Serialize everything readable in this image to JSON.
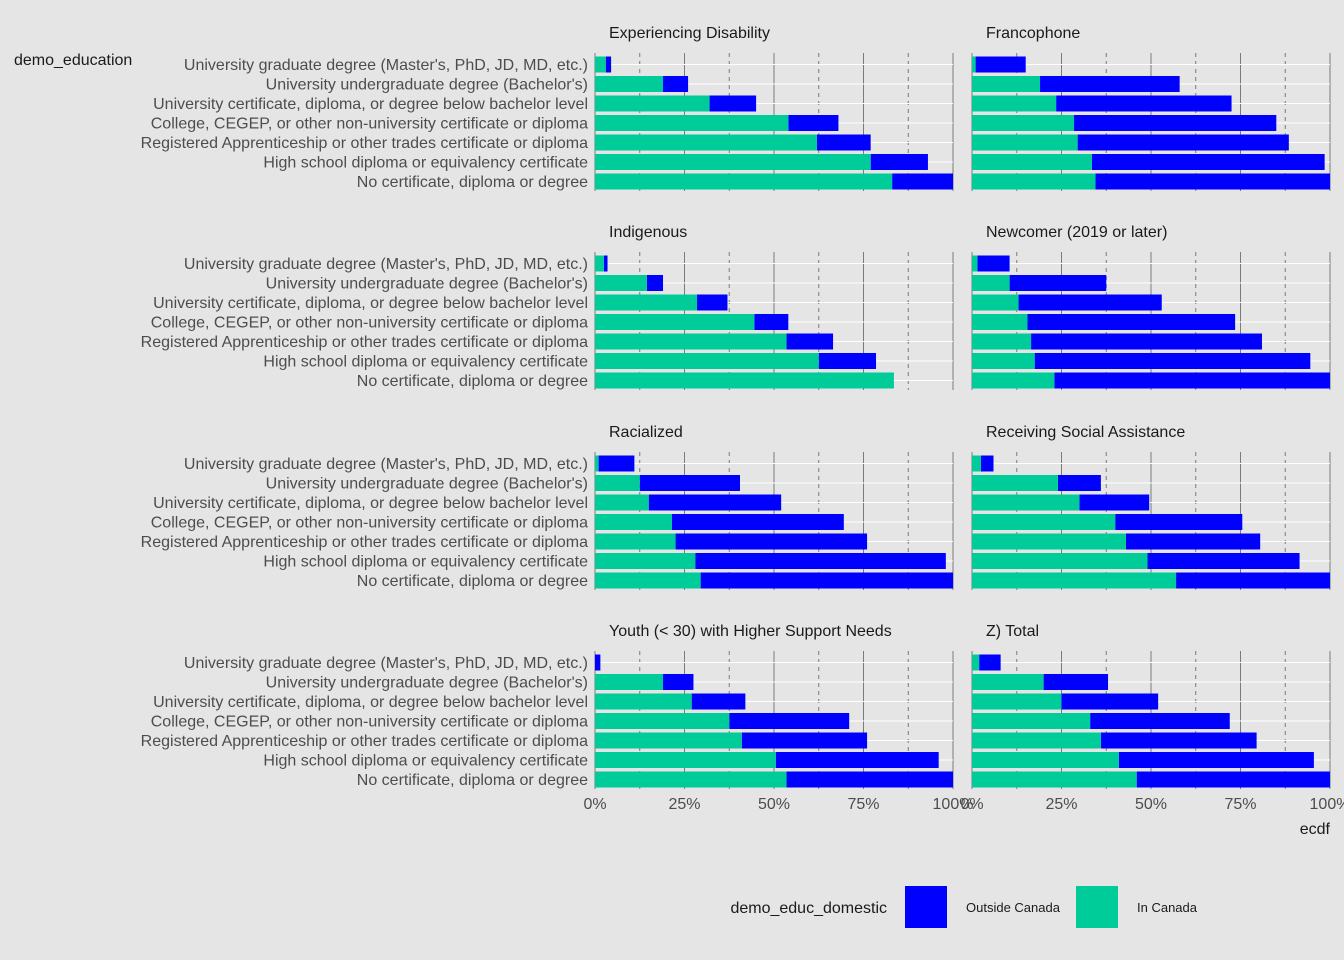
{
  "chart_data": {
    "type": "bar",
    "orientation": "horizontal",
    "stacked": true,
    "ylabel": "demo_education",
    "xlabel": "ecdf",
    "xlim": [
      0,
      1
    ],
    "x_ticks": [
      0,
      0.25,
      0.5,
      0.75,
      1
    ],
    "x_tick_labels": [
      "0%",
      "25%",
      "50%",
      "75%",
      "100%"
    ],
    "grid": true,
    "legend": {
      "title": "demo_educ_domestic",
      "position": "bottom",
      "items": [
        {
          "name": "Outside Canada",
          "color": "#0000ff"
        },
        {
          "name": "In Canada",
          "color": "#00cc99"
        }
      ]
    },
    "categories": [
      "University graduate degree (Master's, PhD, JD, MD, etc.)",
      "University undergraduate degree (Bachelor's)",
      "University certificate, diploma, or degree below bachelor level",
      "College, CEGEP, or other non-university certificate or diploma",
      "Registered Apprenticeship or other trades certificate or diploma",
      "High school diploma or equivalency certificate",
      "No certificate, diploma or degree"
    ],
    "facets": [
      {
        "title": "Experiencing Disability",
        "in_canada": [
          0.03,
          0.19,
          0.32,
          0.54,
          0.62,
          0.77,
          0.83
        ],
        "total": [
          0.045,
          0.26,
          0.45,
          0.68,
          0.77,
          0.93,
          1.0
        ]
      },
      {
        "title": "Francophone",
        "in_canada": [
          0.01,
          0.19,
          0.235,
          0.285,
          0.295,
          0.335,
          0.345
        ],
        "total": [
          0.15,
          0.58,
          0.725,
          0.85,
          0.885,
          0.985,
          1.0
        ]
      },
      {
        "title": "Indigenous",
        "in_canada": [
          0.025,
          0.145,
          0.285,
          0.445,
          0.535,
          0.625,
          0.835
        ],
        "total": [
          0.035,
          0.19,
          0.37,
          0.54,
          0.665,
          0.785,
          0.835
        ]
      },
      {
        "title": "Newcomer (2019 or later)",
        "in_canada": [
          0.015,
          0.105,
          0.13,
          0.155,
          0.165,
          0.175,
          0.23
        ],
        "total": [
          0.105,
          0.375,
          0.53,
          0.735,
          0.81,
          0.945,
          1.0
        ]
      },
      {
        "title": "Racialized",
        "in_canada": [
          0.01,
          0.125,
          0.15,
          0.215,
          0.225,
          0.28,
          0.295
        ],
        "total": [
          0.11,
          0.405,
          0.52,
          0.695,
          0.76,
          0.98,
          1.0
        ]
      },
      {
        "title": "Receiving Social Assistance",
        "in_canada": [
          0.025,
          0.24,
          0.3,
          0.4,
          0.43,
          0.49,
          0.57
        ],
        "total": [
          0.06,
          0.36,
          0.495,
          0.755,
          0.805,
          0.915,
          1.0
        ]
      },
      {
        "title": "Youth (< 30) with Higher Support Needs",
        "in_canada": [
          0.0,
          0.19,
          0.27,
          0.375,
          0.41,
          0.505,
          0.535
        ],
        "total": [
          0.015,
          0.275,
          0.42,
          0.71,
          0.76,
          0.96,
          1.0
        ]
      },
      {
        "title": "Z) Total",
        "in_canada": [
          0.02,
          0.2,
          0.25,
          0.33,
          0.36,
          0.41,
          0.46
        ],
        "total": [
          0.08,
          0.38,
          0.52,
          0.72,
          0.795,
          0.955,
          1.0
        ]
      }
    ]
  }
}
